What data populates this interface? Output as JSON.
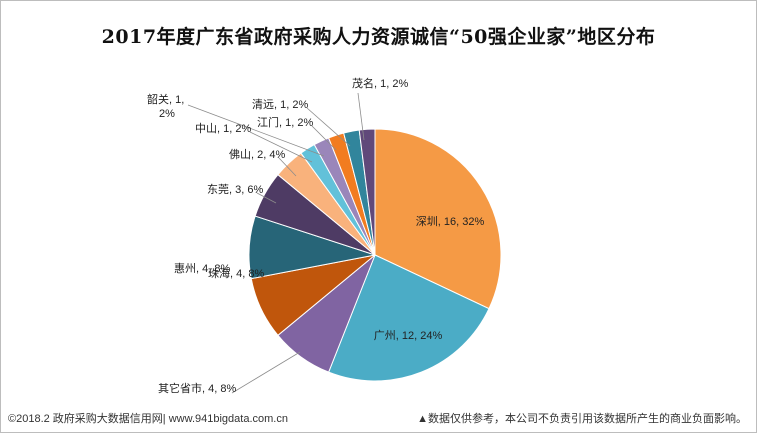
{
  "chart_data": {
    "type": "pie",
    "title": "2017年度广东省政府采购人力资源诚信“50强企业家”地区分布",
    "start_angle_deg": 0,
    "direction": "clockwise",
    "slices": [
      {
        "name": "深圳",
        "value": 16,
        "percent": "32%",
        "label": "深圳, 16, 32%",
        "color": "#f59a45"
      },
      {
        "name": "广州",
        "value": 12,
        "percent": "24%",
        "label": "广州, 12, 24%",
        "color": "#4bacc6"
      },
      {
        "name": "其它省市",
        "value": 4,
        "percent": "8%",
        "label": "其它省市, 4, 8%",
        "color": "#8064a2"
      },
      {
        "name": "珠海",
        "value": 4,
        "percent": "8%",
        "label": "珠海, 4, 8%",
        "color": "#c0560c"
      },
      {
        "name": "惠州",
        "value": 4,
        "percent": "8%",
        "label": "惠州, 4, 8%",
        "color": "#276578"
      },
      {
        "name": "东莞",
        "value": 3,
        "percent": "6%",
        "label": "东莞, 3, 6%",
        "color": "#4e3b64"
      },
      {
        "name": "佛山",
        "value": 2,
        "percent": "4%",
        "label": "佛山, 2, 4%",
        "color": "#f9b27c"
      },
      {
        "name": "中山",
        "value": 1,
        "percent": "2%",
        "label": "中山, 1, 2%",
        "color": "#62c1d9"
      },
      {
        "name": "韶关",
        "value": 1,
        "percent": "2%",
        "label": "韶关, 1, 2%",
        "color": "#9a86ba"
      },
      {
        "name": "江门",
        "value": 1,
        "percent": "2%",
        "label": "江门, 1, 2%",
        "color": "#f27c20"
      },
      {
        "name": "清远",
        "value": 1,
        "percent": "2%",
        "label": "清远, 1, 2%",
        "color": "#31859c"
      },
      {
        "name": "茂名",
        "value": 1,
        "percent": "2%",
        "label": "茂名, 1, 2%",
        "color": "#60497a"
      }
    ]
  },
  "footer": {
    "left": "©2018.2 政府采购大数据信用网| www.941bigdata.com.cn",
    "right": "▲数据仅供参考，本公司不负责引用该数据所产生的商业负面影响。"
  }
}
